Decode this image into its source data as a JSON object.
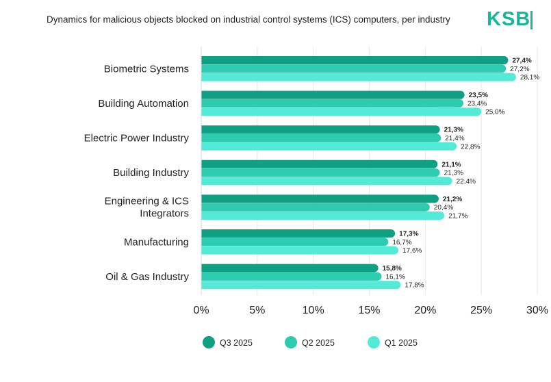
{
  "header": {
    "title": "Dynamics for malicious objects blocked on industrial control systems (ICS) computers, per industry",
    "logo_text": "KSB"
  },
  "colors": {
    "q3": "#0f9f82",
    "q2": "#2dcbb0",
    "q1": "#54ead8",
    "grid": "#e6e6e6",
    "text": "#1f1f1f"
  },
  "chart_data": {
    "type": "bar",
    "orientation": "horizontal",
    "title": "Dynamics for malicious objects blocked on industrial control systems (ICS) computers, per industry",
    "categories": [
      "Biometric Systems",
      "Building Automation",
      "Electric Power Industry",
      "Building Industry",
      "Engineering & ICS Integrators",
      "Manufacturing",
      "Oil & Gas Industry"
    ],
    "category_lines": [
      [
        "Biometric Systems"
      ],
      [
        "Building Automation"
      ],
      [
        "Electric Power Industry"
      ],
      [
        "Building Industry"
      ],
      [
        "Engineering & ICS",
        "Integrators"
      ],
      [
        "Manufacturing"
      ],
      [
        "Oil & Gas Industry"
      ]
    ],
    "series": [
      {
        "name": "Q3 2025",
        "values": [
          27.4,
          23.5,
          21.3,
          21.1,
          21.2,
          17.3,
          15.8
        ],
        "labels": [
          "27,4%",
          "23,5%",
          "21,3%",
          "21,1%",
          "21,2%",
          "17,3%",
          "15,8%"
        ],
        "bold": true
      },
      {
        "name": "Q2 2025",
        "values": [
          27.2,
          23.4,
          21.4,
          21.3,
          20.4,
          16.7,
          16.1
        ],
        "labels": [
          "27,2%",
          "23,4%",
          "21,4%",
          "21,3%",
          "20,4%",
          "16,7%",
          "16,1%"
        ],
        "bold": false
      },
      {
        "name": "Q1 2025",
        "values": [
          28.1,
          25.0,
          22.8,
          22.4,
          21.7,
          17.6,
          17.8
        ],
        "labels": [
          "28,1%",
          "25,0%",
          "22,8%",
          "22,4%",
          "21,7%",
          "17,6%",
          "17,8%"
        ],
        "bold": false
      }
    ],
    "xlim": [
      0,
      30
    ],
    "xticks": [
      0,
      5,
      10,
      15,
      20,
      25,
      30
    ],
    "xtick_labels": [
      "0%",
      "5%",
      "10%",
      "15%",
      "20%",
      "25%",
      "30%"
    ],
    "xlabel": "",
    "ylabel": "",
    "grid": true,
    "legend_position": "bottom"
  }
}
